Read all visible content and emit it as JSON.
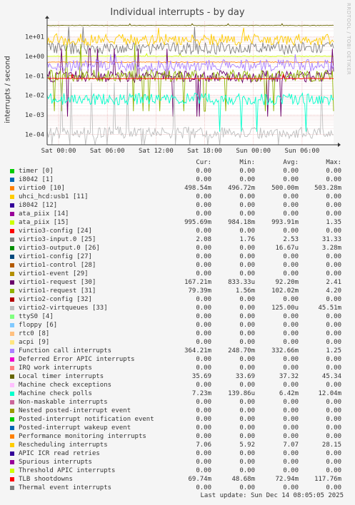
{
  "chart_data": {
    "type": "line",
    "title": "Individual interrupts - by day",
    "ylabel": "interrupts / second",
    "yscale": "log",
    "ylim": [
      3e-05,
      60
    ],
    "yticks": [
      {
        "value": 0.0001,
        "label": "1e-04"
      },
      {
        "value": 0.001,
        "label": "1e-03"
      },
      {
        "value": 0.01,
        "label": "1e-02"
      },
      {
        "value": 0.1,
        "label": "1e-01"
      },
      {
        "value": 1,
        "label": "1e+00"
      },
      {
        "value": 10,
        "label": "1e+01"
      }
    ],
    "xticks": [
      {
        "pos": 0.04,
        "label": "Sat 00:00"
      },
      {
        "pos": 0.21,
        "label": "Sat 06:00"
      },
      {
        "pos": 0.38,
        "label": "Sat 12:00"
      },
      {
        "pos": 0.55,
        "label": "Sat 18:00"
      },
      {
        "pos": 0.72,
        "label": "Sun 00:00"
      },
      {
        "pos": 0.89,
        "label": "Sun 06:00"
      }
    ],
    "grid": true,
    "watermark": "RRDTOOL / TOBI OETIKER",
    "columns": [
      "Cur:",
      "Min:",
      "Avg:",
      "Max:"
    ],
    "series": [
      {
        "name": "timer [0]",
        "color": "#00cc00",
        "cur": "0.00",
        "min": "0.00",
        "avg": "0.00",
        "max": "0.00"
      },
      {
        "name": "i8042 [1]",
        "color": "#0066b3",
        "cur": "0.00",
        "min": "0.00",
        "avg": "0.00",
        "max": "0.00"
      },
      {
        "name": "virtio0 [10]",
        "color": "#ff8000",
        "cur": "498.54m",
        "min": "496.72m",
        "avg": "500.00m",
        "max": "503.28m"
      },
      {
        "name": "uhci_hcd:usb1 [11]",
        "color": "#ffcc00",
        "cur": "0.00",
        "min": "0.00",
        "avg": "0.00",
        "max": "0.00"
      },
      {
        "name": "i8042 [12]",
        "color": "#330099",
        "cur": "0.00",
        "min": "0.00",
        "avg": "0.00",
        "max": "0.00"
      },
      {
        "name": "ata_piix [14]",
        "color": "#990099",
        "cur": "0.00",
        "min": "0.00",
        "avg": "0.00",
        "max": "0.00"
      },
      {
        "name": "ata_piix [15]",
        "color": "#ccff00",
        "cur": "995.69m",
        "min": "984.18m",
        "avg": "993.91m",
        "max": "1.35"
      },
      {
        "name": "virtio3-config [24]",
        "color": "#ff0000",
        "cur": "0.00",
        "min": "0.00",
        "avg": "0.00",
        "max": "0.00"
      },
      {
        "name": "virtio3-input.0 [25]",
        "color": "#808080",
        "cur": "2.08",
        "min": "1.76",
        "avg": "2.53",
        "max": "31.33"
      },
      {
        "name": "virtio3-output.0 [26]",
        "color": "#008f00",
        "cur": "0.00",
        "min": "0.00",
        "avg": "16.67u",
        "max": "3.28m"
      },
      {
        "name": "virtio1-config [27]",
        "color": "#00487d",
        "cur": "0.00",
        "min": "0.00",
        "avg": "0.00",
        "max": "0.00"
      },
      {
        "name": "virtio1-control [28]",
        "color": "#b35a00",
        "cur": "0.00",
        "min": "0.00",
        "avg": "0.00",
        "max": "0.00"
      },
      {
        "name": "virtio1-event [29]",
        "color": "#b38f00",
        "cur": "0.00",
        "min": "0.00",
        "avg": "0.00",
        "max": "0.00"
      },
      {
        "name": "virtio1-request [30]",
        "color": "#6b006b",
        "cur": "167.21m",
        "min": "833.33u",
        "avg": "92.20m",
        "max": "2.41"
      },
      {
        "name": "virtio1-request [31]",
        "color": "#8fb300",
        "cur": "79.39m",
        "min": "1.56m",
        "avg": "102.02m",
        "max": "4.20"
      },
      {
        "name": "virtio2-config [32]",
        "color": "#b30000",
        "cur": "0.00",
        "min": "0.00",
        "avg": "0.00",
        "max": "0.00"
      },
      {
        "name": "virtio2-virtqueues [33]",
        "color": "#bebebe",
        "cur": "0.00",
        "min": "0.00",
        "avg": "125.00u",
        "max": "45.51m"
      },
      {
        "name": "ttyS0 [4]",
        "color": "#80ff80",
        "cur": "0.00",
        "min": "0.00",
        "avg": "0.00",
        "max": "0.00"
      },
      {
        "name": "floppy [6]",
        "color": "#80c9ff",
        "cur": "0.00",
        "min": "0.00",
        "avg": "0.00",
        "max": "0.00"
      },
      {
        "name": "rtc0 [8]",
        "color": "#ffc080",
        "cur": "0.00",
        "min": "0.00",
        "avg": "0.00",
        "max": "0.00"
      },
      {
        "name": "acpi [9]",
        "color": "#ffe680",
        "cur": "0.00",
        "min": "0.00",
        "avg": "0.00",
        "max": "0.00"
      },
      {
        "name": "Function call interrupts",
        "color": "#aa80ff",
        "cur": "364.21m",
        "min": "248.70m",
        "avg": "332.66m",
        "max": "1.25"
      },
      {
        "name": "Deferred Error APIC interrupts",
        "color": "#ee00cc",
        "cur": "0.00",
        "min": "0.00",
        "avg": "0.00",
        "max": "0.00"
      },
      {
        "name": "IRQ work interrupts",
        "color": "#ff8080",
        "cur": "0.00",
        "min": "0.00",
        "avg": "0.00",
        "max": "0.00"
      },
      {
        "name": "Local timer interrupts",
        "color": "#666600",
        "cur": "35.69",
        "min": "33.69",
        "avg": "37.32",
        "max": "45.34"
      },
      {
        "name": "Machine check exceptions",
        "color": "#ffbfff",
        "cur": "0.00",
        "min": "0.00",
        "avg": "0.00",
        "max": "0.00"
      },
      {
        "name": "Machine check polls",
        "color": "#00ffcc",
        "cur": "7.23m",
        "min": "139.86u",
        "avg": "6.42m",
        "max": "12.04m"
      },
      {
        "name": "Non-maskable interrupts",
        "color": "#cc6699",
        "cur": "0.00",
        "min": "0.00",
        "avg": "0.00",
        "max": "0.00"
      },
      {
        "name": "Nested posted-interrupt event",
        "color": "#999900",
        "cur": "0.00",
        "min": "0.00",
        "avg": "0.00",
        "max": "0.00"
      },
      {
        "name": "Posted-interrupt notification event",
        "color": "#00cc00",
        "cur": "0.00",
        "min": "0.00",
        "avg": "0.00",
        "max": "0.00"
      },
      {
        "name": "Posted-interrupt wakeup event",
        "color": "#0066b3",
        "cur": "0.00",
        "min": "0.00",
        "avg": "0.00",
        "max": "0.00"
      },
      {
        "name": "Performance monitoring interrupts",
        "color": "#ff8000",
        "cur": "0.00",
        "min": "0.00",
        "avg": "0.00",
        "max": "0.00"
      },
      {
        "name": "Rescheduling interrupts",
        "color": "#ffcc00",
        "cur": "7.06",
        "min": "5.92",
        "avg": "7.07",
        "max": "28.15"
      },
      {
        "name": "APIC ICR read retries",
        "color": "#330099",
        "cur": "0.00",
        "min": "0.00",
        "avg": "0.00",
        "max": "0.00"
      },
      {
        "name": "Spurious interrupts",
        "color": "#990099",
        "cur": "0.00",
        "min": "0.00",
        "avg": "0.00",
        "max": "0.00"
      },
      {
        "name": "Threshold APIC interrupts",
        "color": "#ccff00",
        "cur": "0.00",
        "min": "0.00",
        "avg": "0.00",
        "max": "0.00"
      },
      {
        "name": "TLB shootdowns",
        "color": "#ff0000",
        "cur": "69.74m",
        "min": "48.68m",
        "avg": "72.94m",
        "max": "117.76m"
      },
      {
        "name": "Thermal event interrupts",
        "color": "#808080",
        "cur": "0.00",
        "min": "0.00",
        "avg": "0.00",
        "max": "0.00"
      }
    ],
    "last_update": "Last update: Sun Dec 14 08:05:05 2025"
  }
}
